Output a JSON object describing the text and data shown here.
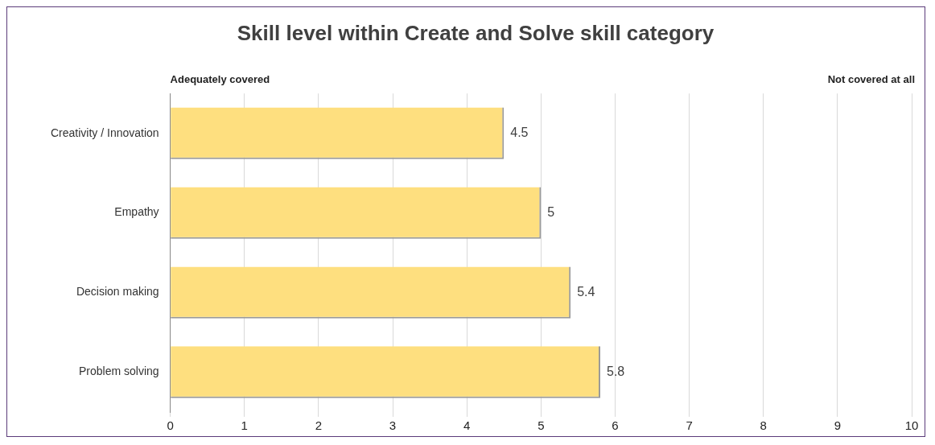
{
  "chart_data": {
    "type": "bar",
    "orientation": "horizontal",
    "title": "Skill level within Create and Solve skill category",
    "categories": [
      "Creativity / Innovation",
      "Empathy",
      "Decision making",
      "Problem solving"
    ],
    "values": [
      4.5,
      5,
      5.4,
      5.8
    ],
    "color": "#fedf7f",
    "xlim": [
      0,
      10
    ],
    "xticks": [
      0,
      1,
      2,
      3,
      4,
      5,
      6,
      7,
      8,
      9,
      10
    ],
    "grid": "x",
    "data_labels": true,
    "annotations": [
      "Adequately covered",
      "Not covered at all"
    ]
  }
}
